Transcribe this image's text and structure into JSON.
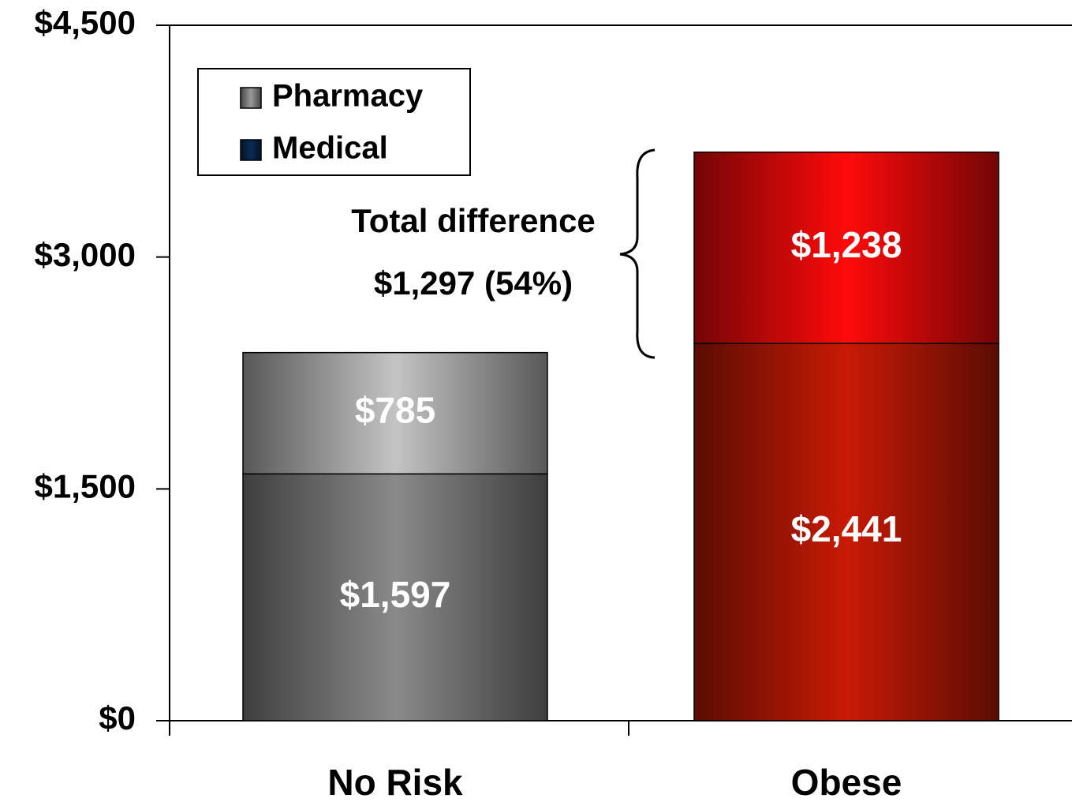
{
  "chart_data": {
    "type": "stacked_bar",
    "categories": [
      "No Risk",
      "Obese"
    ],
    "series": [
      {
        "name": "Medical",
        "color": "#0a2a55",
        "bar_colors": [
          "#8a8a8a",
          "#c81a05"
        ],
        "values": [
          1597,
          2441
        ],
        "value_labels": [
          "$1,597",
          "$2,441"
        ]
      },
      {
        "name": "Pharmacy",
        "color": "#999999",
        "bar_colors": [
          "#c4c4c4",
          "#ff0a0a"
        ],
        "values": [
          785,
          1238
        ],
        "value_labels": [
          "$785",
          "$1,238"
        ]
      }
    ],
    "ylim": [
      0,
      4500
    ],
    "yticks": [
      {
        "value": 0,
        "label": "$0"
      },
      {
        "value": 1500,
        "label": "$1,500"
      },
      {
        "value": 3000,
        "label": "$3,000"
      },
      {
        "value": 4500,
        "label": "$4,500"
      }
    ],
    "annotations": [
      "Total difference",
      "$1,297 (54%)"
    ],
    "legend": "upper left"
  }
}
